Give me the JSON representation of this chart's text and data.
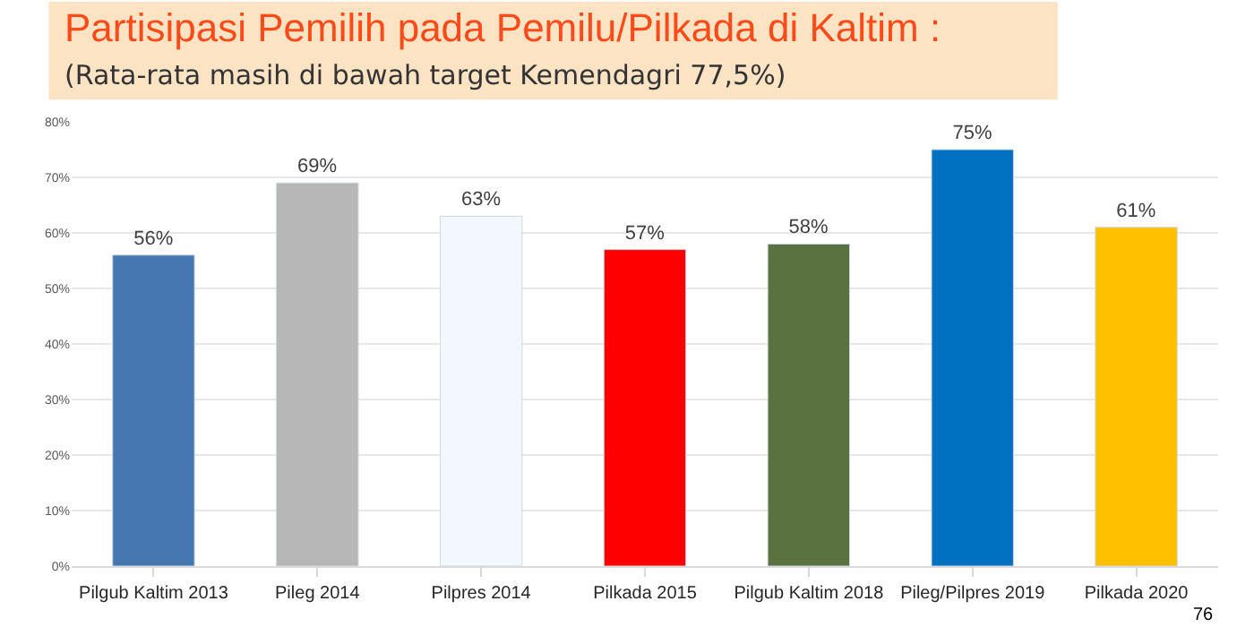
{
  "chart_data": {
    "type": "bar",
    "title": "Partisipasi Pemilih pada Pemilu/Pilkada di Kaltim :",
    "subtitle": "(Rata-rata masih di bawah target Kemendagri 77,5%)",
    "categories": [
      "Pilgub Kaltim 2013",
      "Pileg 2014",
      "Pilpres 2014",
      "Pilkada 2015",
      "Pilgub Kaltim 2018",
      "Pileg/Pilpres 2019",
      "Pilkada 2020"
    ],
    "values": [
      56,
      69,
      63,
      57,
      58,
      75,
      61
    ],
    "value_labels": [
      "56%",
      "69%",
      "63%",
      "57%",
      "58%",
      "75%",
      "61%"
    ],
    "colors": [
      "#4677b0",
      "#b7b7b7",
      "#f2f8fd",
      "#ff0000",
      "#5a7240",
      "#0070c0",
      "#ffc000"
    ],
    "ylim": [
      0,
      80
    ],
    "yticks": [
      {
        "value": 0,
        "label": "0%"
      },
      {
        "value": 10,
        "label": "10%"
      },
      {
        "value": 20,
        "label": "20%"
      },
      {
        "value": 30,
        "label": "30%"
      },
      {
        "value": 40,
        "label": "40%"
      },
      {
        "value": 50,
        "label": "50%"
      },
      {
        "value": 60,
        "label": "60%"
      },
      {
        "value": 70,
        "label": "70%"
      },
      {
        "value": 80,
        "label": "80%"
      }
    ],
    "grid": "y",
    "annotations": [
      "76"
    ]
  }
}
